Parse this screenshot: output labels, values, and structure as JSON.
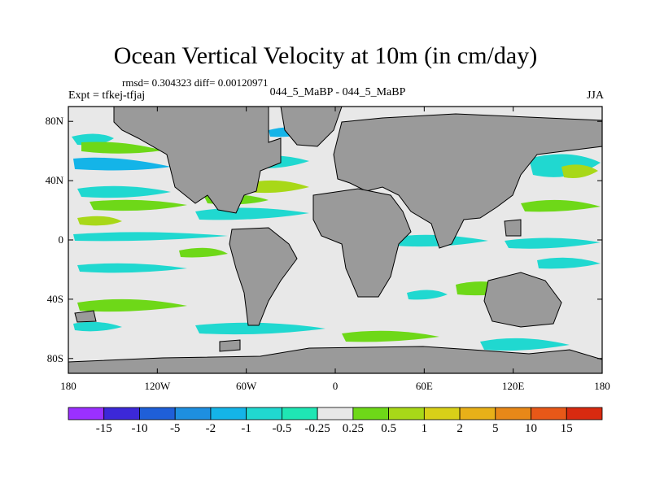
{
  "figure": {
    "title": "Ocean Vertical Velocity at 10m (in cm/day)",
    "stats_line": "rmsd= 0.304323 diff= 0.00120971",
    "experiment_label": "Expt = tfkej-tfjaj",
    "center_subtitle": "044_5_MaBP - 044_5_MaBP",
    "season": "JJA"
  },
  "map": {
    "projection": "cylindrical-equidistant",
    "lon_range": [
      -180,
      180
    ],
    "lat_range": [
      -90,
      90
    ],
    "x_ticks": [
      {
        "value": -180,
        "label": "180"
      },
      {
        "value": -120,
        "label": "120W"
      },
      {
        "value": -60,
        "label": "60W"
      },
      {
        "value": 0,
        "label": "0"
      },
      {
        "value": 60,
        "label": "60E"
      },
      {
        "value": 120,
        "label": "120E"
      },
      {
        "value": 180,
        "label": "180"
      }
    ],
    "y_ticks": [
      {
        "value": 80,
        "label": "80N"
      },
      {
        "value": 40,
        "label": "40N"
      },
      {
        "value": 0,
        "label": "0"
      },
      {
        "value": -40,
        "label": "40S"
      },
      {
        "value": -80,
        "label": "80S"
      }
    ],
    "land_color": "#9a9a9a",
    "background_color": "#e8e8e8"
  },
  "colorbar": {
    "bins": [
      {
        "color": "#9b30ff"
      },
      {
        "color": "#3c28d8"
      },
      {
        "color": "#1f5fd8"
      },
      {
        "color": "#1e8fe0"
      },
      {
        "color": "#14b4e8"
      },
      {
        "color": "#20d8d0"
      },
      {
        "color": "#1fe6b4"
      },
      {
        "color": "#e8e8e8"
      },
      {
        "color": "#6ed818"
      },
      {
        "color": "#a8d818"
      },
      {
        "color": "#d8d018"
      },
      {
        "color": "#e8b018"
      },
      {
        "color": "#e88818"
      },
      {
        "color": "#e85818"
      },
      {
        "color": "#d82a10"
      }
    ],
    "tick_labels": [
      "-15",
      "-10",
      "-5",
      "-2",
      "-1",
      "-0.5",
      "-0.25",
      "0.25",
      "0.5",
      "1",
      "2",
      "5",
      "10",
      "15"
    ]
  }
}
